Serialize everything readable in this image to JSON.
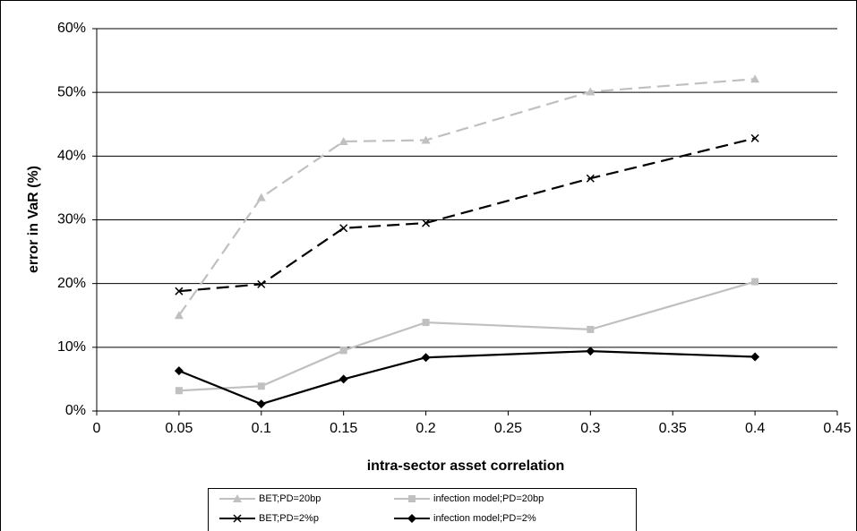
{
  "chart_data": {
    "type": "line",
    "xlabel": "intra-sector asset correlation",
    "ylabel": "error in VaR (%)",
    "x": [
      0.05,
      0.1,
      0.15,
      0.2,
      0.3,
      0.4
    ],
    "xlim": [
      0,
      0.45
    ],
    "xticks": [
      0,
      0.05,
      0.1,
      0.15,
      0.2,
      0.25,
      0.3,
      0.35,
      0.4,
      0.45
    ],
    "ylim": [
      0,
      60
    ],
    "yticks": [
      {
        "value": 0,
        "label": "0%"
      },
      {
        "value": 10,
        "label": "10%"
      },
      {
        "value": 20,
        "label": "20%"
      },
      {
        "value": 30,
        "label": "30%"
      },
      {
        "value": 40,
        "label": "40%"
      },
      {
        "value": 50,
        "label": "50%"
      },
      {
        "value": 60,
        "label": "60%"
      }
    ],
    "grid": true,
    "legend": "bottom",
    "series": [
      {
        "name": "BET;PD=20bp",
        "color": "#c0c0c0",
        "dash": true,
        "marker": "triangle",
        "values": [
          15.0,
          33.5,
          42.3,
          42.5,
          50.1,
          52.1
        ]
      },
      {
        "name": "infection model;PD=20bp",
        "color": "#c0c0c0",
        "dash": false,
        "marker": "square",
        "values": [
          3.2,
          3.9,
          9.5,
          13.9,
          12.8,
          20.3
        ]
      },
      {
        "name": "BET;PD=2%p",
        "color": "#000000",
        "dash": true,
        "marker": "cross",
        "values": [
          18.8,
          19.9,
          28.7,
          29.5,
          36.5,
          42.8
        ]
      },
      {
        "name": "infection model;PD=2%",
        "color": "#000000",
        "dash": false,
        "marker": "diamond",
        "values": [
          6.3,
          1.1,
          5.0,
          8.4,
          9.4,
          8.5
        ]
      }
    ]
  }
}
